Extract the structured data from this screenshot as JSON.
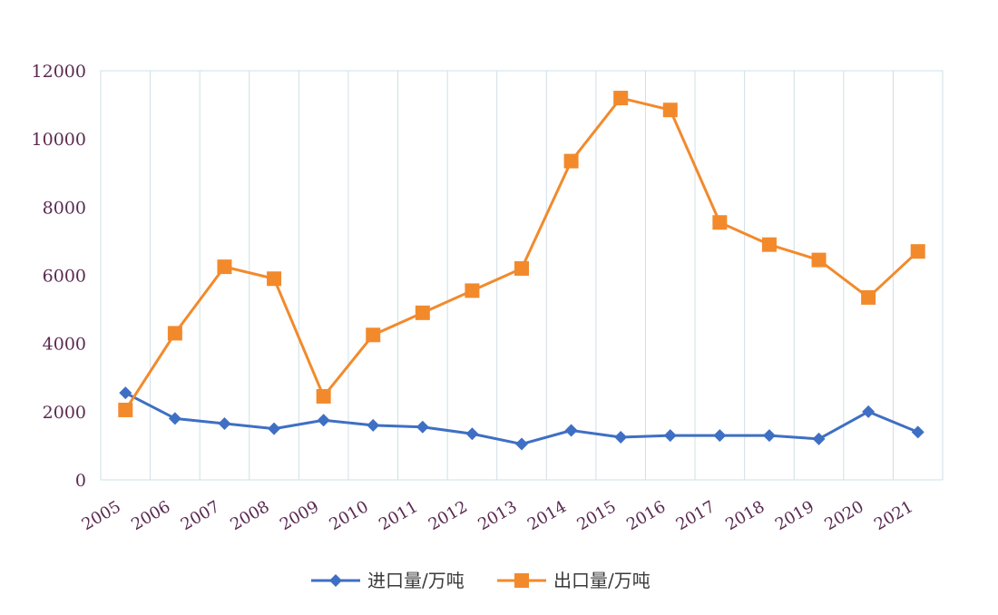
{
  "chart_data": {
    "type": "line",
    "title": "",
    "xlabel": "",
    "ylabel": "",
    "categories": [
      "2005",
      "2006",
      "2007",
      "2008",
      "2009",
      "2010",
      "2011",
      "2012",
      "2013",
      "2014",
      "2015",
      "2016",
      "2017",
      "2018",
      "2019",
      "2020",
      "2021"
    ],
    "ylim": [
      0,
      12000
    ],
    "yticks": [
      "0",
      "2000",
      "4000",
      "6000",
      "8000",
      "10000",
      "12000"
    ],
    "grid": "vertical",
    "legend": "bottom",
    "series": [
      {
        "name": "进口量/万吨",
        "color": "#3e6fc4",
        "marker": "diamond",
        "values": [
          2550,
          1800,
          1650,
          1500,
          1750,
          1600,
          1550,
          1350,
          1050,
          1450,
          1250,
          1300,
          1300,
          1300,
          1200,
          2000,
          1400
        ]
      },
      {
        "name": "出口量/万吨",
        "color": "#f28a2c",
        "marker": "square",
        "values": [
          2050,
          4300,
          6250,
          5900,
          2450,
          4250,
          4900,
          5550,
          6200,
          9350,
          11200,
          10850,
          7550,
          6900,
          6450,
          5350,
          6700
        ]
      }
    ]
  }
}
